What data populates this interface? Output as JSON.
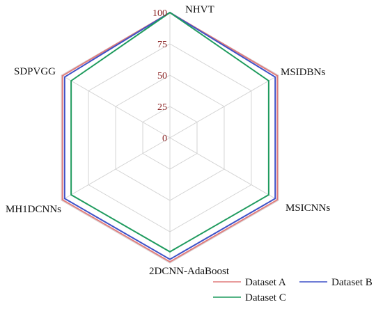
{
  "chart_data": {
    "type": "radar",
    "categories": [
      "NHVT",
      "MSIDBNs",
      "MSICNNs",
      "2DCNN-AdaBoost",
      "MH1DCNNs",
      "SDPVGG"
    ],
    "r_ticks": [
      "0",
      "25",
      "50",
      "75",
      "100"
    ],
    "r_range": [
      0,
      100
    ],
    "grid": true,
    "legend_position": "bottom-right",
    "series": [
      {
        "name": "Dataset A",
        "color": "#E07B7B",
        "values": [
          100,
          99,
          99,
          99,
          99,
          99
        ]
      },
      {
        "name": "Dataset B",
        "color": "#3F51C7",
        "values": [
          100,
          97,
          97,
          97,
          97,
          97
        ]
      },
      {
        "name": "Dataset C",
        "color": "#1F9B5E",
        "values": [
          100,
          91,
          91,
          91,
          91,
          91
        ]
      }
    ]
  }
}
